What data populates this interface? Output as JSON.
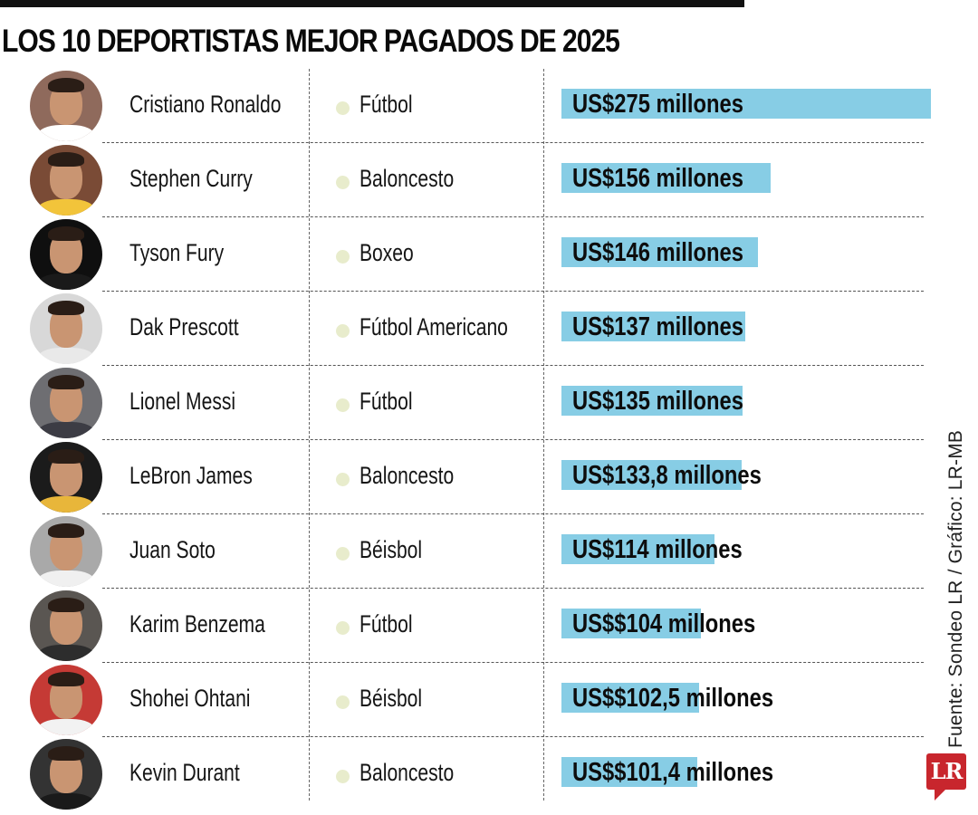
{
  "header": {
    "title": "LOS 10 DEPORTISTAS MEJOR PAGADOS DE 2025"
  },
  "footer": {
    "source": "Fuente:  Sondeo LR / Gráfico: LR-MB",
    "logo_text": "LR"
  },
  "colors": {
    "bar": "#87cde5",
    "sport_dot": "#e8eccc",
    "logo": "#c8262d",
    "top_rule": "#111111"
  },
  "rows": [
    {
      "name": "Cristiano Ronaldo",
      "sport": "Fútbol",
      "amount": "US$275 millones",
      "value": 275,
      "avatar_bg": "#8f6a5c",
      "shirt": "#ffffff"
    },
    {
      "name": "Stephen Curry",
      "sport": "Baloncesto",
      "amount": "US$156 millones",
      "value": 156,
      "avatar_bg": "#7a4b36",
      "shirt": "#f2c43a"
    },
    {
      "name": "Tyson Fury",
      "sport": "Boxeo",
      "amount": "US$146 millones",
      "value": 146,
      "avatar_bg": "#0f0f0f",
      "shirt": "#1a1a1a"
    },
    {
      "name": "Dak Prescott",
      "sport": "Fútbol Americano",
      "amount": "US$137 millones",
      "value": 137,
      "avatar_bg": "#d8d8d8",
      "shirt": "#e9e9e9"
    },
    {
      "name": "Lionel Messi",
      "sport": "Fútbol",
      "amount": "US$135 millones",
      "value": 135,
      "avatar_bg": "#6e6e72",
      "shirt": "#3c3c44"
    },
    {
      "name": "LeBron James",
      "sport": "Baloncesto",
      "amount": "US$133,8 millones",
      "value": 133.8,
      "avatar_bg": "#1b1b1b",
      "shirt": "#e8b63a"
    },
    {
      "name": "Juan Soto",
      "sport": "Béisbol",
      "amount": "US$114 millones",
      "value": 114,
      "avatar_bg": "#a9a9a9",
      "shirt": "#f0f0f0"
    },
    {
      "name": "Karim Benzema",
      "sport": "Fútbol",
      "amount": "US$$104 millones",
      "value": 104,
      "avatar_bg": "#5a5652",
      "shirt": "#2d2d2d"
    },
    {
      "name": "Shohei Ohtani",
      "sport": "Béisbol",
      "amount": "US$$102,5 millones",
      "value": 102.5,
      "avatar_bg": "#c53a35",
      "shirt": "#f2f2f2"
    },
    {
      "name": "Kevin Durant",
      "sport": "Baloncesto",
      "amount": "US$$101,4 millones",
      "value": 101.4,
      "avatar_bg": "#333333",
      "shirt": "#1a1a1a"
    }
  ],
  "chart_data": {
    "type": "bar",
    "orientation": "horizontal",
    "title": "LOS 10 DEPORTISTAS MEJOR PAGADOS DE 2025",
    "xlabel": "",
    "ylabel": "",
    "unit": "US$ millones",
    "categories": [
      "Cristiano Ronaldo",
      "Stephen Curry",
      "Tyson Fury",
      "Dak Prescott",
      "Lionel Messi",
      "LeBron James",
      "Juan Soto",
      "Karim Benzema",
      "Shohei Ohtani",
      "Kevin Durant"
    ],
    "sports": [
      "Fútbol",
      "Baloncesto",
      "Boxeo",
      "Fútbol Americano",
      "Fútbol",
      "Baloncesto",
      "Béisbol",
      "Fútbol",
      "Béisbol",
      "Baloncesto"
    ],
    "values": [
      275,
      156,
      146,
      137,
      135,
      133.8,
      114,
      104,
      102.5,
      101.4
    ],
    "data_labels": [
      "US$275 millones",
      "US$156 millones",
      "US$146 millones",
      "US$137 millones",
      "US$135 millones",
      "US$133,8 millones",
      "US$114 millones",
      "US$$104 millones",
      "US$$102,5 millones",
      "US$$101,4 millones"
    ],
    "xlim": [
      0,
      275
    ],
    "grid": false,
    "legend": null,
    "source": "Fuente:  Sondeo LR / Gráfico: LR-MB"
  }
}
